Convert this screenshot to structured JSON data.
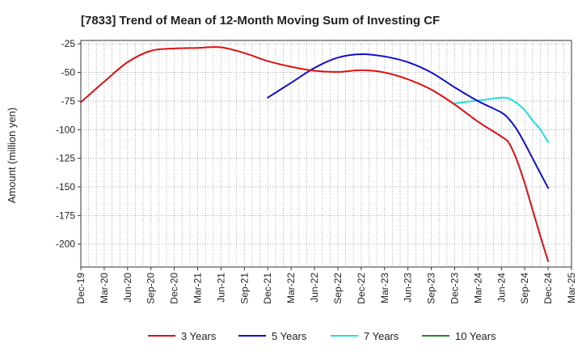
{
  "chart_data": {
    "type": "line",
    "title": "[7833]  Trend of Mean of 12-Month Moving Sum of Investing CF",
    "xlabel": "",
    "ylabel": "Amount (million yen)",
    "ylim": [
      -220,
      -22
    ],
    "yticks": [
      -25,
      -50,
      -75,
      -100,
      -125,
      -150,
      -175,
      -200
    ],
    "ytick_labels": [
      "-25",
      "-50",
      "-75",
      "-100",
      "-125",
      "-150",
      "-175",
      "-200"
    ],
    "xlim": [
      0,
      63
    ],
    "xticks": [
      0,
      3,
      6,
      9,
      12,
      15,
      18,
      21,
      24,
      27,
      30,
      33,
      36,
      39,
      42,
      45,
      48,
      51,
      54,
      57,
      60,
      63
    ],
    "xtick_labels": [
      "Dec-19",
      "Mar-20",
      "Jun-20",
      "Sep-20",
      "Dec-20",
      "Mar-21",
      "Jun-21",
      "Sep-21",
      "Dec-21",
      "Mar-22",
      "Jun-22",
      "Sep-22",
      "Dec-22",
      "Mar-23",
      "Jun-23",
      "Sep-23",
      "Dec-23",
      "Mar-24",
      "Jun-24",
      "Sep-24",
      "Dec-24",
      "Mar-25"
    ],
    "grid": true,
    "legend_position": "bottom",
    "series": [
      {
        "name": "3 Years",
        "color": "#dd1111",
        "x": [
          0,
          3,
          6,
          9,
          12,
          15,
          18,
          21,
          24,
          27,
          30,
          33,
          36,
          39,
          42,
          45,
          48,
          51,
          54,
          55,
          56,
          57,
          58,
          59,
          60
        ],
        "values": [
          -76,
          -58,
          -41,
          -31,
          -29,
          -28.5,
          -28,
          -33,
          -40,
          -45,
          -48.5,
          -49.5,
          -48,
          -50,
          -56,
          -65,
          -78,
          -93,
          -106,
          -112,
          -127,
          -147,
          -170,
          -193,
          -215
        ]
      },
      {
        "name": "5 Years",
        "color": "#1010cc",
        "x": [
          24,
          27,
          30,
          33,
          36,
          39,
          42,
          45,
          48,
          51,
          54,
          55,
          56,
          57,
          58,
          59,
          60
        ],
        "values": [
          -72,
          -59,
          -46,
          -37,
          -34,
          -36,
          -41,
          -50,
          -63,
          -75,
          -85,
          -91,
          -100,
          -112,
          -125,
          -138,
          -151
        ]
      },
      {
        "name": "7 Years",
        "color": "#22dddd",
        "x": [
          48,
          51,
          54,
          55,
          56,
          57,
          58,
          59,
          60
        ],
        "values": [
          -77,
          -74.5,
          -72,
          -73,
          -77,
          -83,
          -92,
          -100,
          -111
        ]
      },
      {
        "name": "10 Years",
        "color": "#228822",
        "x": [],
        "values": []
      }
    ]
  }
}
